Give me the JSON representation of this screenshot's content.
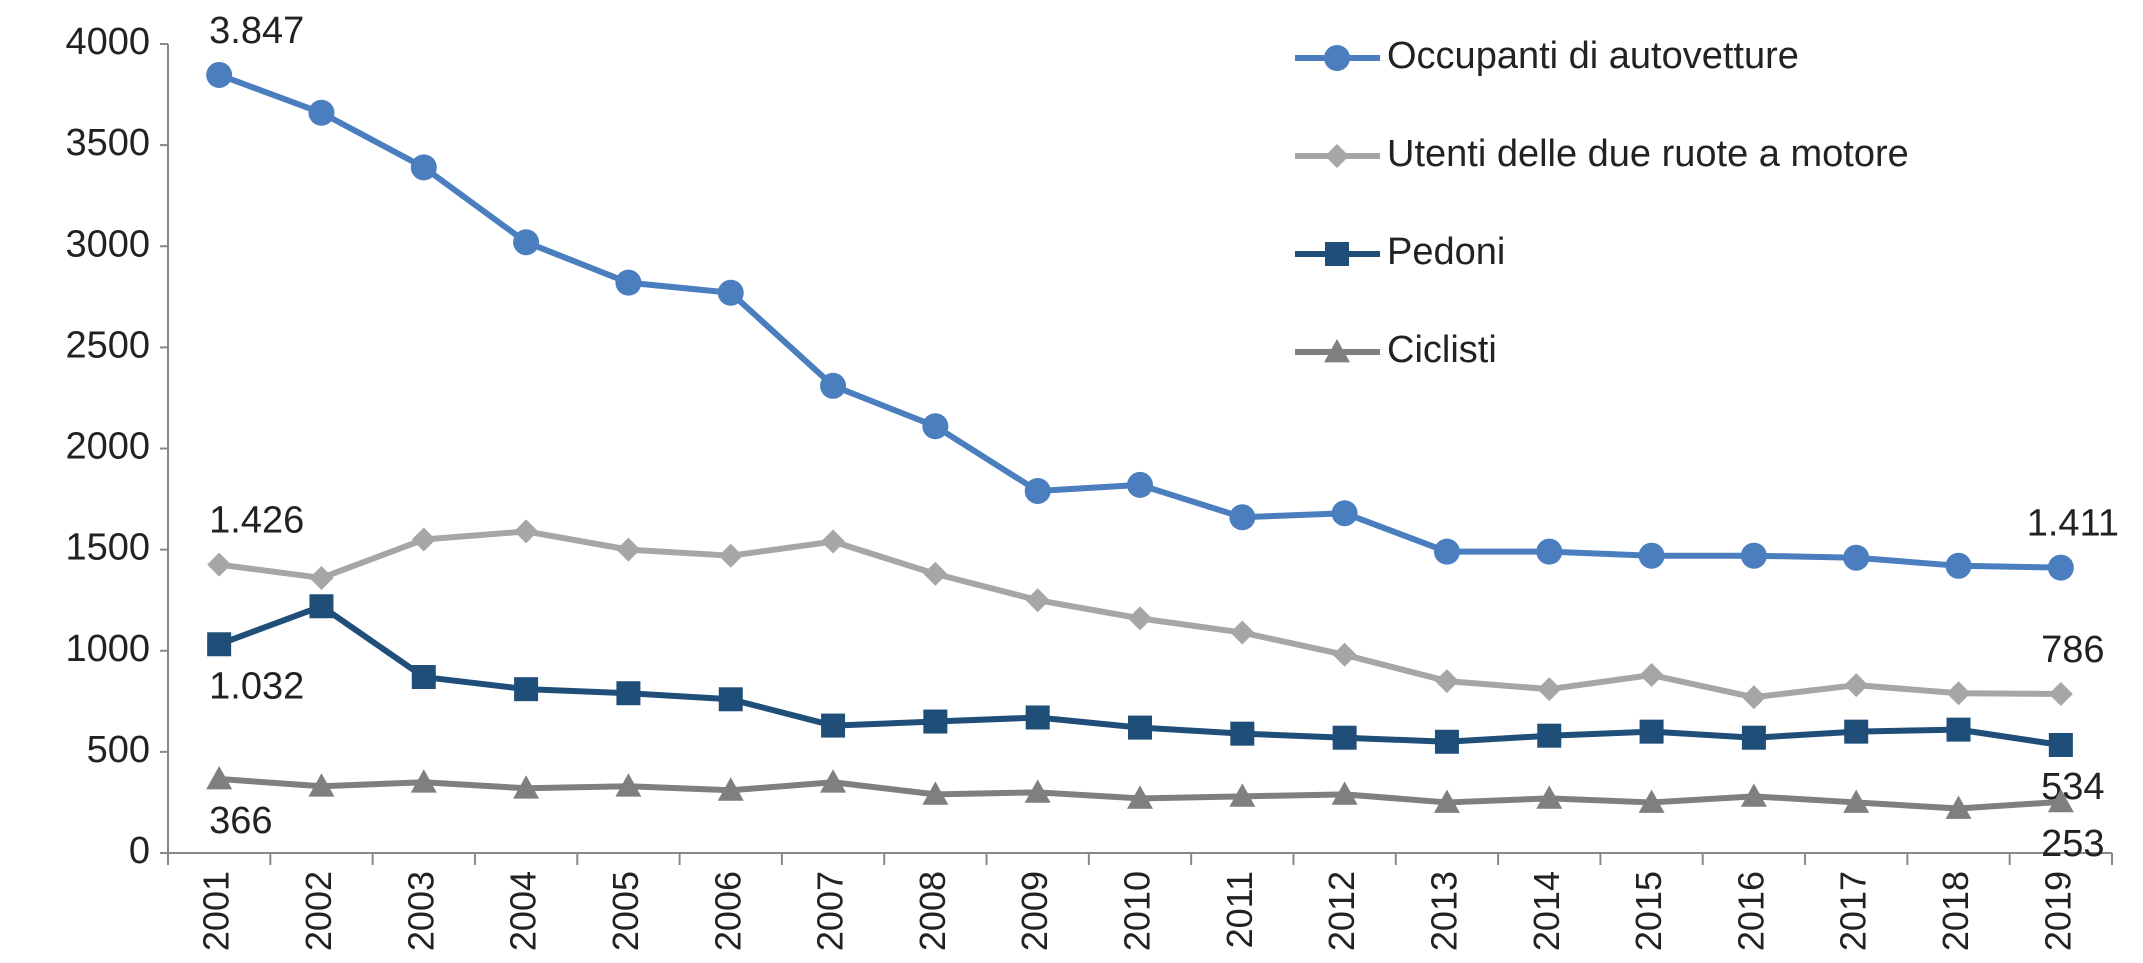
{
  "chart_data": {
    "type": "line",
    "categories": [
      "2001",
      "2002",
      "2003",
      "2004",
      "2005",
      "2006",
      "2007",
      "2008",
      "2009",
      "2010",
      "2011",
      "2012",
      "2013",
      "2014",
      "2015",
      "2016",
      "2017",
      "2018",
      "2019"
    ],
    "ylim": [
      0,
      4000
    ],
    "yticks": [
      0,
      500,
      1000,
      1500,
      2000,
      2500,
      3000,
      3500,
      4000
    ],
    "grid": false,
    "legend": "top-right",
    "series": [
      {
        "name": "Occupanti di autovetture",
        "color": "#4a7ebf",
        "marker": "circle",
        "values": [
          3847,
          3660,
          3390,
          3020,
          2820,
          2770,
          2310,
          2110,
          1790,
          1820,
          1660,
          1680,
          1490,
          1490,
          1470,
          1470,
          1460,
          1420,
          1411
        ],
        "value_labels": [
          "3.847",
          null,
          null,
          null,
          null,
          null,
          null,
          null,
          null,
          null,
          null,
          null,
          null,
          null,
          null,
          null,
          null,
          null,
          "1.411"
        ]
      },
      {
        "name": "Utenti delle due ruote a motore",
        "color": "#a6a6a6",
        "marker": "diamond",
        "values": [
          1426,
          1360,
          1550,
          1590,
          1500,
          1470,
          1540,
          1380,
          1250,
          1160,
          1090,
          980,
          850,
          810,
          880,
          770,
          830,
          790,
          786
        ],
        "value_labels": [
          "1.426",
          null,
          null,
          null,
          null,
          null,
          null,
          null,
          null,
          null,
          null,
          null,
          null,
          null,
          null,
          null,
          null,
          null,
          "786"
        ]
      },
      {
        "name": "Pedoni",
        "color": "#1f4e79",
        "marker": "square",
        "values": [
          1032,
          1220,
          870,
          810,
          790,
          760,
          630,
          650,
          670,
          620,
          590,
          570,
          550,
          580,
          600,
          570,
          600,
          610,
          534
        ],
        "value_labels": [
          "1.032",
          null,
          null,
          null,
          null,
          null,
          null,
          null,
          null,
          null,
          null,
          null,
          null,
          null,
          null,
          null,
          null,
          null,
          "534"
        ]
      },
      {
        "name": "Ciclisti",
        "color": "#7f7f7f",
        "marker": "triangle",
        "values": [
          366,
          330,
          350,
          320,
          330,
          310,
          350,
          290,
          300,
          270,
          280,
          290,
          250,
          270,
          250,
          280,
          250,
          220,
          253
        ],
        "value_labels": [
          "366",
          null,
          null,
          null,
          null,
          null,
          null,
          null,
          null,
          null,
          null,
          null,
          null,
          null,
          null,
          null,
          null,
          null,
          "253"
        ]
      }
    ]
  }
}
